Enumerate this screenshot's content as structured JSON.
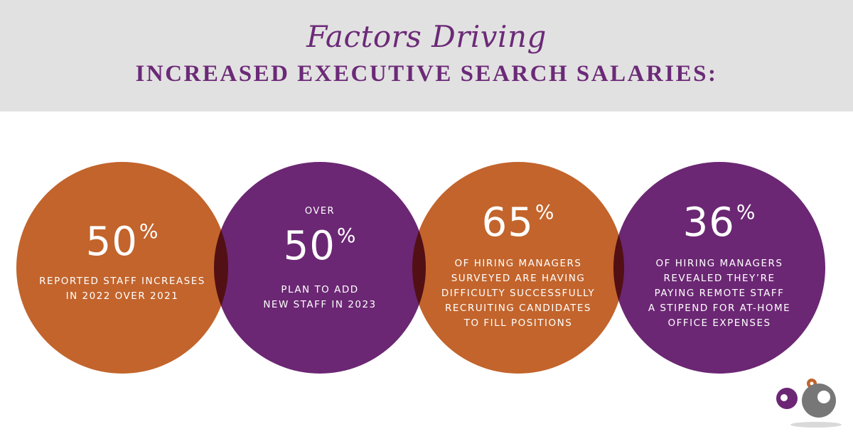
{
  "header": {
    "title_line1": "Factors Driving",
    "title_line2": "INCREASED EXECUTIVE SEARCH SALARIES:"
  },
  "stats": [
    {
      "prefix": "",
      "value": "50",
      "unit": "%",
      "line1": "REPORTED STAFF INCREASES",
      "line2": "IN 2022 OVER 2021"
    },
    {
      "prefix": "OVER",
      "value": "50",
      "unit": "%",
      "line1": "PLAN TO ADD",
      "line2": "NEW STAFF IN 2023"
    },
    {
      "prefix": "",
      "value": "65",
      "unit": "%",
      "line1": "OF HIRING MANAGERS",
      "line2": "SURVEYED ARE HAVING",
      "line3": "DIFFICULTY SUCCESSFULLY",
      "line4": "RECRUITING CANDIDATES",
      "line5": "TO FILL POSITIONS"
    },
    {
      "prefix": "",
      "value": "36",
      "unit": "%",
      "line1": "OF HIRING MANAGERS",
      "line2": "REVEALED THEY’RE",
      "line3": "PAYING REMOTE STAFF",
      "line4": "A STIPEND FOR AT-HOME",
      "line5": "OFFICE EXPENSES"
    }
  ],
  "colors": {
    "orange": "#c2642c",
    "purple": "#6b2773",
    "title": "#6b2a78",
    "header_bg": "#e2e1e1"
  },
  "logo": {
    "icon": "company-logo-icon"
  }
}
